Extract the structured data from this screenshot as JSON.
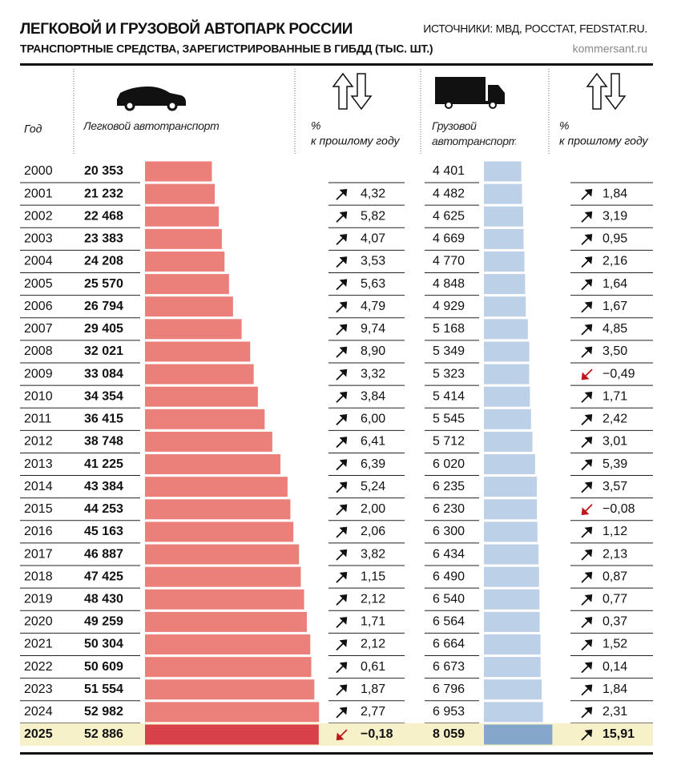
{
  "chart_data": {
    "type": "bar",
    "title": "ЛЕГКОВОЙ И ГРУЗОВОЙ АВТОПАРК РОССИИ",
    "subtitle": "ТРАНСПОРТНЫЕ СРЕДСТВА, ЗАРЕГИСТРИРОВАННЫЕ В ГИБДД (ТЫС. ШТ.)",
    "source": "ИСТОЧНИКИ: МВД, РОССТАТ, FEDSTAT.RU.",
    "site": "kommersant.ru",
    "category_header": "Год",
    "change_header": [
      "%",
      "к прошлому году"
    ],
    "highlight_category": "2025",
    "categories": [
      "2000",
      "2001",
      "2002",
      "2003",
      "2004",
      "2005",
      "2006",
      "2007",
      "2008",
      "2009",
      "2010",
      "2011",
      "2012",
      "2013",
      "2014",
      "2015",
      "2016",
      "2017",
      "2018",
      "2019",
      "2020",
      "2021",
      "2022",
      "2023",
      "2024",
      "2025"
    ],
    "series": [
      {
        "name": "Легковой автотранспорт",
        "color": "#ea8079",
        "highlight_color": "#d8404a",
        "xlim": [
          0,
          60000
        ],
        "values": [
          20353,
          21232,
          22468,
          23383,
          24208,
          25570,
          26794,
          29405,
          32021,
          33084,
          34354,
          36415,
          38748,
          41225,
          43384,
          44253,
          45163,
          46887,
          47425,
          48430,
          49259,
          50304,
          50609,
          51554,
          52982,
          52886
        ],
        "value_labels": [
          "20 353",
          "21 232",
          "22 468",
          "23 383",
          "24 208",
          "25 570",
          "26 794",
          "29 405",
          "32 021",
          "33 084",
          "34 354",
          "36 415",
          "38 748",
          "41 225",
          "43 384",
          "44 253",
          "45 163",
          "46 887",
          "47 425",
          "48 430",
          "49 259",
          "50 304",
          "50 609",
          "51 554",
          "52 982",
          "52 886"
        ],
        "change": {
          "values": [
            null,
            4.32,
            5.82,
            4.07,
            3.53,
            5.63,
            4.79,
            9.74,
            8.9,
            3.32,
            3.84,
            6.0,
            6.41,
            6.39,
            5.24,
            2.0,
            2.06,
            3.82,
            1.15,
            2.12,
            1.71,
            2.12,
            0.61,
            1.87,
            2.77,
            -0.18
          ],
          "value_labels": [
            null,
            "4,32",
            "5,82",
            "4,07",
            "3,53",
            "5,63",
            "4,79",
            "9,74",
            "8,90",
            "3,32",
            "3,84",
            "6,00",
            "6,41",
            "6,39",
            "5,24",
            "2,00",
            "2,06",
            "3,82",
            "1,15",
            "2,12",
            "1,71",
            "2,12",
            "0,61",
            "1,87",
            "2,77",
            "−0,18"
          ]
        }
      },
      {
        "name": "Грузовой автотранспорт",
        "color": "#bcd0e8",
        "highlight_color": "#85a7cb",
        "xlim": [
          0,
          10000
        ],
        "values": [
          4401,
          4482,
          4625,
          4669,
          4770,
          4848,
          4929,
          5168,
          5349,
          5323,
          5414,
          5545,
          5712,
          6020,
          6235,
          6230,
          6300,
          6434,
          6490,
          6540,
          6564,
          6664,
          6673,
          6796,
          6953,
          8059
        ],
        "value_labels": [
          "4 401",
          "4 482",
          "4 625",
          "4 669",
          "4 770",
          "4 848",
          "4 929",
          "5 168",
          "5 349",
          "5 323",
          "5 414",
          "5 545",
          "5 712",
          "6 020",
          "6 235",
          "6 230",
          "6 300",
          "6 434",
          "6 490",
          "6 540",
          "6 564",
          "6 664",
          "6 673",
          "6 796",
          "6 953",
          "8 059"
        ],
        "change": {
          "values": [
            null,
            1.84,
            3.19,
            0.95,
            2.16,
            1.64,
            1.67,
            4.85,
            3.5,
            -0.49,
            1.71,
            2.42,
            3.01,
            5.39,
            3.57,
            -0.08,
            1.12,
            2.13,
            0.87,
            0.77,
            0.37,
            1.52,
            0.14,
            1.84,
            2.31,
            15.91
          ],
          "value_labels": [
            null,
            "1,84",
            "3,19",
            "0,95",
            "2,16",
            "1,64",
            "1,67",
            "4,85",
            "3,50",
            "−0,49",
            "1,71",
            "2,42",
            "3,01",
            "5,39",
            "3,57",
            "−0,08",
            "1,12",
            "2,13",
            "0,87",
            "0,77",
            "0,37",
            "1,52",
            "0,14",
            "1,84",
            "2,31",
            "15,91"
          ]
        }
      }
    ]
  }
}
